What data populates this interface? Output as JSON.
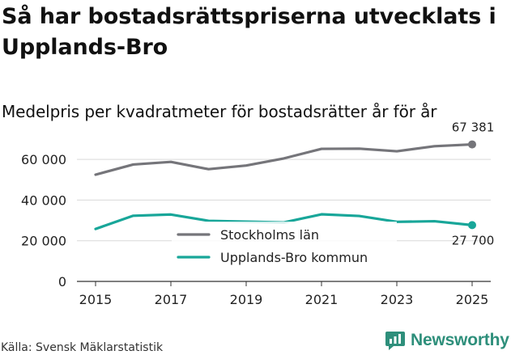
{
  "header": {
    "title": "Så har bostadsrättspriserna utvecklats i Upplands-Bro",
    "subtitle": "Medelpris per kvadratmeter för bostadsrätter år för år"
  },
  "footer": {
    "source": "Källa: Svensk Mäklarstatistik",
    "brand": "Newsworthy",
    "brand_icon": "newsworthy-logo-icon",
    "brand_color": "#2e8f7b"
  },
  "chart_data": {
    "type": "line",
    "x": [
      2015,
      2016,
      2017,
      2018,
      2019,
      2020,
      2021,
      2022,
      2023,
      2024,
      2025
    ],
    "x_ticks": [
      "2015",
      "2017",
      "2019",
      "2021",
      "2023",
      "2025"
    ],
    "y_ticks": [
      "0",
      "20 000",
      "40 000",
      "60 000"
    ],
    "ylim": [
      0,
      70000
    ],
    "xlim": [
      2015,
      2025
    ],
    "grid": "horizontal",
    "legend_position": "center-bottom",
    "series": [
      {
        "name": "Stockholms län",
        "color": "#75757a",
        "values": [
          52500,
          57500,
          58800,
          55200,
          57000,
          60500,
          65200,
          65300,
          64000,
          66500,
          67381
        ],
        "end_label": "67 381"
      },
      {
        "name": "Upplands-Bro kommun",
        "color": "#18a699",
        "values": [
          25800,
          32300,
          32900,
          29800,
          29400,
          29000,
          33000,
          32200,
          29300,
          29600,
          27700
        ],
        "end_label": "27 700"
      }
    ]
  }
}
